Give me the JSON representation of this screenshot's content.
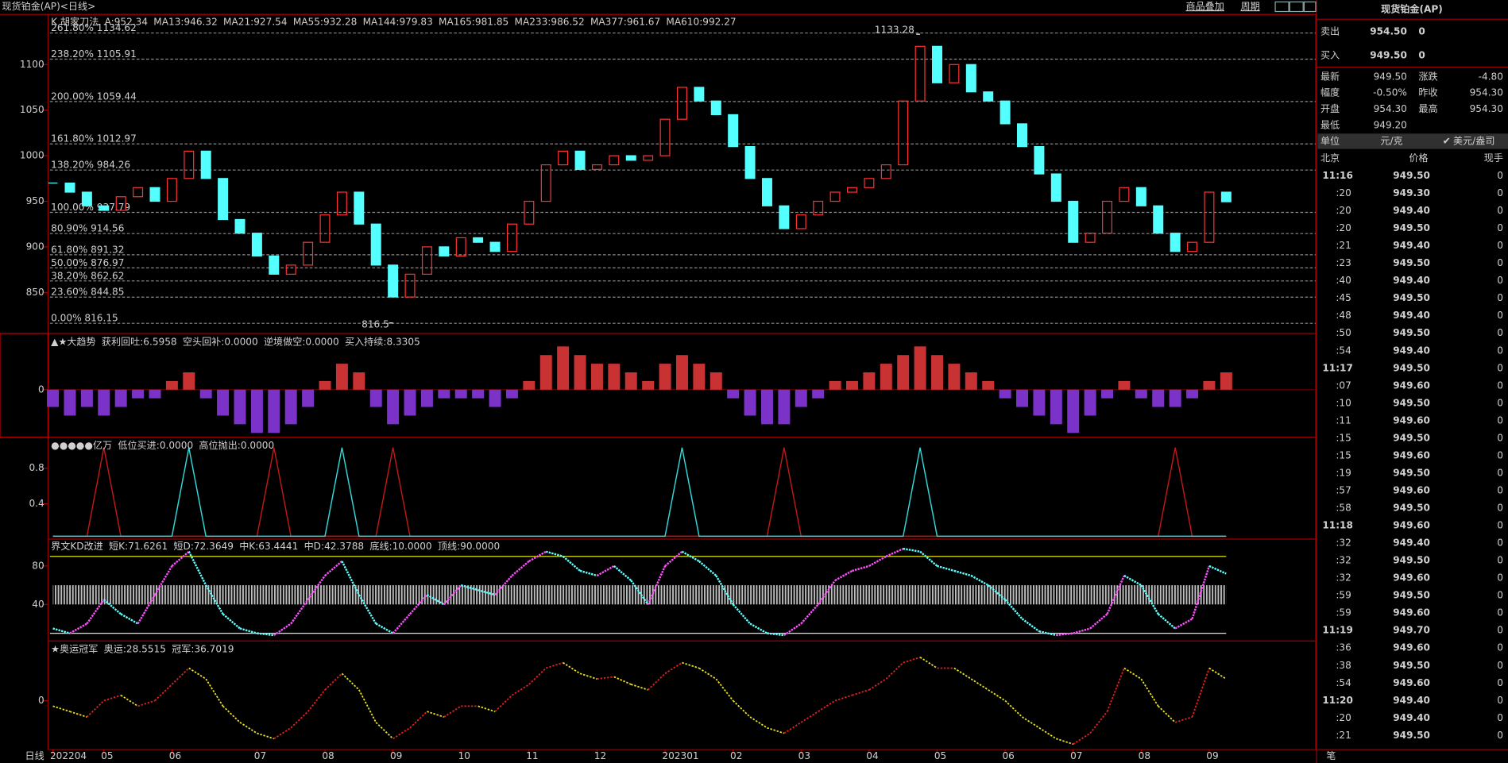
{
  "window": {
    "title": "现货铂金(AP)<日线>",
    "toolbar": [
      "商品叠加",
      "周期"
    ]
  },
  "x_axis": {
    "label": "日线",
    "categories": [
      "202204",
      null,
      null,
      "05",
      null,
      null,
      null,
      "06",
      null,
      null,
      null,
      null,
      "07",
      null,
      null,
      null,
      "08",
      null,
      null,
      null,
      "09",
      null,
      null,
      null,
      "10",
      null,
      null,
      null,
      "11",
      null,
      null,
      null,
      "12",
      null,
      null,
      null,
      "202301",
      null,
      null,
      null,
      "02",
      null,
      null,
      null,
      "03",
      null,
      null,
      null,
      "04",
      null,
      null,
      null,
      "05",
      null,
      null,
      null,
      "06",
      null,
      null,
      null,
      "07",
      null,
      null,
      null,
      "08",
      null,
      null,
      null,
      "09",
      null
    ]
  },
  "main_chart": {
    "legend": [
      {
        "text": "K 胡家刀法",
        "color": "#ffffff"
      },
      {
        "text": "A:952.34",
        "color": "#ff4040"
      },
      {
        "text": "MA13:946.32",
        "color": "#ffffff"
      },
      {
        "text": "MA21:927.54",
        "color": "#ffff00"
      },
      {
        "text": "MA55:932.28",
        "color": "#ff40ff"
      },
      {
        "text": "MA144:979.83",
        "color": "#00e000"
      },
      {
        "text": "MA165:981.85",
        "color": "#8c8cff"
      },
      {
        "text": "MA233:986.52",
        "color": "#ff9900"
      },
      {
        "text": "MA377:961.67",
        "color": "#40a8ff"
      },
      {
        "text": "MA610:992.27",
        "color": "#ff6060"
      }
    ],
    "ylim": [
      805,
      1155
    ],
    "yticks": [
      850,
      900,
      950,
      1000,
      1050,
      1100
    ],
    "fib_levels": [
      {
        "value": 1134.62,
        "label": "261.80% 1134.62"
      },
      {
        "value": 1105.91,
        "label": "238.20% 1105.91"
      },
      {
        "value": 1059.44,
        "label": "200.00% 1059.44"
      },
      {
        "value": 1012.97,
        "label": "161.80% 1012.97"
      },
      {
        "value": 984.26,
        "label": "138.20% 984.26"
      },
      {
        "value": 937.79,
        "label": "100.00% 937.79"
      },
      {
        "value": 914.56,
        "label": "80.90% 914.56"
      },
      {
        "value": 891.32,
        "label": "61.80% 891.32"
      },
      {
        "value": 876.97,
        "label": "50.00% 876.97"
      },
      {
        "value": 862.62,
        "label": "38.20% 862.62"
      },
      {
        "value": 844.85,
        "label": "23.60% 844.85"
      },
      {
        "value": 816.15,
        "label": "0.00% 816.15"
      }
    ],
    "high": 1133.28,
    "low": 816.5,
    "up_color": "#ff3232",
    "down_color": "#54ffff",
    "values": [
      970,
      960,
      945,
      940,
      955,
      965,
      950,
      975,
      1005,
      975,
      930,
      915,
      890,
      870,
      880,
      905,
      935,
      960,
      925,
      880,
      845,
      870,
      900,
      890,
      910,
      905,
      895,
      925,
      950,
      990,
      1005,
      985,
      990,
      1000,
      995,
      1000,
      1040,
      1075,
      1060,
      1045,
      1010,
      975,
      945,
      920,
      935,
      950,
      960,
      965,
      975,
      990,
      1060,
      1120,
      1080,
      1100,
      1070,
      1060,
      1035,
      1010,
      980,
      950,
      905,
      915,
      950,
      965,
      945,
      915,
      895,
      905,
      960,
      949.5
    ]
  },
  "trend_panel": {
    "legend": [
      {
        "text": "▲★大趋势",
        "color": "#ffffff"
      },
      {
        "text": "获利回吐:6.5958",
        "color": "#ffffff"
      },
      {
        "text": "空头回补:0.0000",
        "color": "#00ff80"
      },
      {
        "text": "逆境做空:0.0000",
        "color": "#8040ff"
      },
      {
        "text": "买入持续:8.3305",
        "color": "#ff3030"
      }
    ],
    "ylim": [
      -5.5,
      6.5
    ],
    "yticks": [
      0
    ],
    "up_color": "#c83232",
    "down_color": "#7a32c8",
    "values": [
      -2,
      -3,
      -2,
      -3,
      -2,
      -1,
      -1,
      1,
      2,
      -1,
      -3,
      -4,
      -5,
      -5,
      -4,
      -2,
      1,
      3,
      2,
      -2,
      -4,
      -3,
      -2,
      -1,
      -1,
      -1,
      -2,
      -1,
      1,
      4,
      5,
      4,
      3,
      3,
      2,
      1,
      3,
      4,
      3,
      2,
      -1,
      -3,
      -4,
      -4,
      -2,
      -1,
      1,
      1,
      2,
      3,
      4,
      5,
      4,
      3,
      2,
      1,
      -1,
      -2,
      -3,
      -4,
      -5,
      -3,
      -1,
      1,
      -1,
      -2,
      -2,
      -1,
      1,
      2
    ]
  },
  "signal_panel": {
    "legend": [
      {
        "text": "●●●●●亿万",
        "color": "#ffffff"
      },
      {
        "text": "低位买进:0.0000",
        "color": "#ff3030"
      },
      {
        "text": "高位抛出:0.0000",
        "color": "#30e0e0"
      }
    ],
    "ylim": [
      0,
      1.15
    ],
    "yticks": [
      0.4,
      0.8
    ],
    "series": [
      {
        "name": "低位买进",
        "color": "#c01818",
        "values": [
          0,
          0,
          0,
          1,
          0,
          0,
          0,
          0,
          0,
          0,
          0,
          0,
          0,
          1,
          0,
          0,
          0,
          0,
          0,
          0,
          1,
          0,
          0,
          0,
          0,
          0,
          0,
          0,
          0,
          0,
          0,
          0,
          0,
          0,
          0,
          0,
          0,
          0,
          0,
          0,
          0,
          0,
          0,
          1,
          0,
          0,
          0,
          0,
          0,
          0,
          0,
          0,
          0,
          0,
          0,
          0,
          0,
          0,
          0,
          0,
          0,
          0,
          0,
          0,
          0,
          0,
          1,
          0,
          0,
          0
        ]
      },
      {
        "name": "高位抛出",
        "color": "#30d8d8",
        "values": [
          0,
          0,
          0,
          0,
          0,
          0,
          0,
          0,
          1,
          0,
          0,
          0,
          0,
          0,
          0,
          0,
          0,
          1,
          0,
          0,
          0,
          0,
          0,
          0,
          0,
          0,
          0,
          0,
          0,
          0,
          0,
          0,
          0,
          0,
          0,
          0,
          0,
          1,
          0,
          0,
          0,
          0,
          0,
          0,
          0,
          0,
          0,
          0,
          0,
          0,
          0,
          1,
          0,
          0,
          0,
          0,
          0,
          0,
          0,
          0,
          0,
          0,
          0,
          0,
          0,
          0,
          0,
          0,
          0,
          0
        ]
      }
    ]
  },
  "kd_panel": {
    "legend": [
      {
        "text": "界文KD改进",
        "color": "#ffffff"
      },
      {
        "text": "短K:71.6261",
        "color": "#ff60ff"
      },
      {
        "text": "短D:72.3649",
        "color": "#60ffff"
      },
      {
        "text": "中K:63.4441",
        "color": "#ff3030"
      },
      {
        "text": "中D:42.3788",
        "color": "#30c030"
      },
      {
        "text": "底线:10.0000",
        "color": "#ffffff"
      },
      {
        "text": "顶线:90.0000",
        "color": "#ffff00"
      }
    ],
    "ylim": [
      2,
      108
    ],
    "yticks": [
      40,
      80
    ],
    "bottom_line": 10,
    "top_line": 90,
    "band": [
      40,
      60
    ],
    "up_color": "#ff50ff",
    "down_color": "#60ffff",
    "values": [
      15,
      10,
      20,
      45,
      30,
      20,
      50,
      80,
      95,
      60,
      30,
      15,
      10,
      8,
      20,
      45,
      70,
      85,
      50,
      20,
      10,
      30,
      50,
      40,
      60,
      55,
      50,
      70,
      85,
      95,
      90,
      75,
      70,
      80,
      65,
      40,
      80,
      95,
      85,
      70,
      40,
      20,
      10,
      8,
      20,
      40,
      65,
      75,
      80,
      90,
      98,
      95,
      80,
      75,
      70,
      60,
      45,
      25,
      12,
      8,
      10,
      15,
      30,
      70,
      60,
      30,
      15,
      25,
      80,
      72
    ]
  },
  "olympic_panel": {
    "legend": [
      {
        "text": "★奥运冠军",
        "color": "#ffffff"
      },
      {
        "text": "奥运:28.5515",
        "color": "#ffffff"
      },
      {
        "text": "冠军:36.7019",
        "color": "#ffff00"
      }
    ],
    "ylim": [
      -45,
      55
    ],
    "yticks": [
      0
    ],
    "up_color": "#e02020",
    "down_color": "#e8e020",
    "values": [
      -5,
      -10,
      -15,
      0,
      5,
      -5,
      0,
      15,
      30,
      20,
      -5,
      -20,
      -30,
      -35,
      -25,
      -10,
      10,
      25,
      10,
      -20,
      -35,
      -25,
      -10,
      -15,
      -5,
      -5,
      -10,
      5,
      15,
      30,
      35,
      25,
      20,
      22,
      15,
      10,
      25,
      35,
      30,
      20,
      0,
      -15,
      -25,
      -30,
      -20,
      -10,
      0,
      5,
      10,
      20,
      35,
      40,
      30,
      30,
      20,
      10,
      0,
      -15,
      -25,
      -35,
      -40,
      -30,
      -10,
      30,
      20,
      -5,
      -20,
      -15,
      30,
      20
    ]
  },
  "quote_panel": {
    "title": "现货铂金(AP)",
    "ask": {
      "label": "卖出",
      "price": "954.50",
      "volume": "0"
    },
    "bid": {
      "label": "买入",
      "price": "949.50",
      "volume": "0"
    },
    "stats": [
      [
        "最新",
        "949.50",
        "涨跌",
        "-4.80"
      ],
      [
        "幅度",
        "-0.50%",
        "昨收",
        "954.30"
      ],
      [
        "开盘",
        "954.30",
        "最高",
        "954.30"
      ],
      [
        "最低",
        "949.20"
      ]
    ],
    "unit": [
      "单位",
      "元/克",
      "美元/盎司"
    ],
    "columns": [
      "北京",
      "价格",
      "现手"
    ],
    "ticks": [
      [
        "11:16",
        "949.50",
        "0"
      ],
      [
        ":20",
        "949.30",
        "0"
      ],
      [
        ":20",
        "949.40",
        "0"
      ],
      [
        ":20",
        "949.50",
        "0"
      ],
      [
        ":21",
        "949.40",
        "0"
      ],
      [
        ":23",
        "949.50",
        "0"
      ],
      [
        ":40",
        "949.40",
        "0"
      ],
      [
        ":45",
        "949.50",
        "0"
      ],
      [
        ":48",
        "949.40",
        "0"
      ],
      [
        ":50",
        "949.50",
        "0"
      ],
      [
        ":54",
        "949.40",
        "0"
      ],
      [
        "11:17",
        "949.50",
        "0"
      ],
      [
        ":07",
        "949.60",
        "0"
      ],
      [
        ":10",
        "949.50",
        "0"
      ],
      [
        ":11",
        "949.60",
        "0"
      ],
      [
        ":15",
        "949.50",
        "0"
      ],
      [
        ":15",
        "949.60",
        "0"
      ],
      [
        ":19",
        "949.50",
        "0"
      ],
      [
        ":57",
        "949.60",
        "0"
      ],
      [
        ":58",
        "949.50",
        "0"
      ],
      [
        "11:18",
        "949.60",
        "0"
      ],
      [
        ":32",
        "949.40",
        "0"
      ],
      [
        ":32",
        "949.50",
        "0"
      ],
      [
        ":32",
        "949.60",
        "0"
      ],
      [
        ":59",
        "949.50",
        "0"
      ],
      [
        ":59",
        "949.60",
        "0"
      ],
      [
        "11:19",
        "949.70",
        "0"
      ],
      [
        ":36",
        "949.60",
        "0"
      ],
      [
        ":38",
        "949.50",
        "0"
      ],
      [
        ":54",
        "949.60",
        "0"
      ],
      [
        "11:20",
        "949.40",
        "0"
      ],
      [
        ":20",
        "949.40",
        "0"
      ],
      [
        ":21",
        "949.50",
        "0"
      ]
    ],
    "tab": "笔"
  }
}
